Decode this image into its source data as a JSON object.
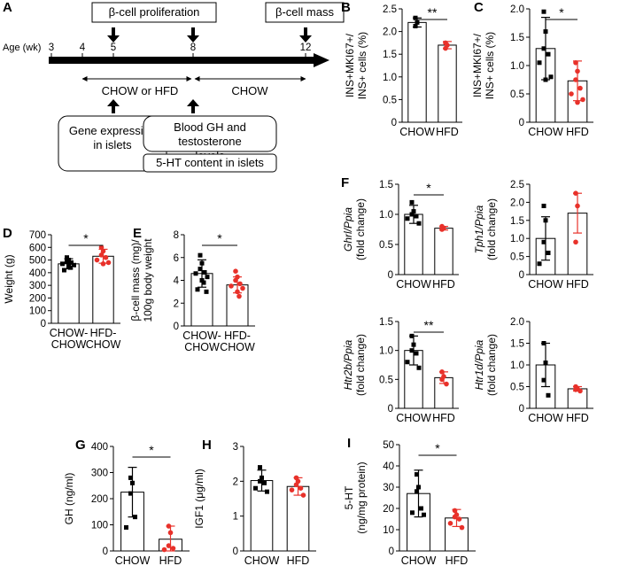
{
  "colors": {
    "chow": "#000000",
    "hfd": "#e8312a",
    "bar": "#ffffff"
  },
  "timeline": {
    "panel": "A",
    "age_label": "Age (wk)",
    "ages": [
      "3",
      "4",
      "5",
      "8",
      "12"
    ],
    "top_boxes": [
      "β-cell proliferation",
      "β-cell mass"
    ],
    "diet_labels": [
      "CHOW or HFD",
      "CHOW"
    ],
    "bottom_boxes": [
      "Gene expression in islets",
      "Blood GH and testosterone levels",
      "5-HT content in islets"
    ]
  },
  "chart_data": [
    {
      "panel": "B",
      "type": "bar",
      "ylabel": "INS+MKI67+/ INS+ cells (%)",
      "categories": [
        "CHOW",
        "HFD"
      ],
      "values": [
        2.2,
        1.7
      ],
      "errors": [
        0.1,
        0.08
      ],
      "points": [
        [
          2.3,
          2.2,
          2.12
        ],
        [
          1.75,
          1.7,
          1.63
        ]
      ],
      "ylim": [
        0,
        2.5
      ],
      "yticks": [
        0,
        0.5,
        1.0,
        1.5,
        2.0,
        2.5
      ],
      "tick_labels": [
        "0",
        "0.5",
        "1.0",
        "1.5",
        "2.0",
        "2.5"
      ],
      "significance": "**"
    },
    {
      "panel": "C",
      "type": "bar",
      "ylabel": "INS+MKI67+/ INS+ cells (%)",
      "categories": [
        "CHOW",
        "HFD"
      ],
      "values": [
        1.3,
        0.73
      ],
      "errors": [
        0.55,
        0.35
      ],
      "points": [
        [
          1.95,
          1.6,
          1.3,
          1.2,
          1.05,
          0.8,
          0.75
        ],
        [
          1.05,
          0.9,
          0.75,
          0.6,
          0.5,
          0.4,
          0.35
        ]
      ],
      "ylim": [
        0,
        2.0
      ],
      "yticks": [
        0,
        0.5,
        1.0,
        1.5,
        2.0
      ],
      "tick_labels": [
        "0",
        "0.5",
        "1.0",
        "1.5",
        "2.0"
      ],
      "significance": "*"
    },
    {
      "panel": "D",
      "type": "bar",
      "ylabel": "Weight (g)",
      "categories": [
        "CHOW- CHOW",
        "HFD- CHOW"
      ],
      "values": [
        470,
        530
      ],
      "errors": [
        40,
        55
      ],
      "points": [
        [
          520,
          500,
          490,
          480,
          470,
          460,
          450,
          440,
          420
        ],
        [
          600,
          570,
          540,
          520,
          500,
          480,
          470
        ]
      ],
      "ylim": [
        0,
        700
      ],
      "yticks": [
        0,
        100,
        200,
        300,
        400,
        500,
        600,
        700
      ],
      "tick_labels": [
        "0",
        "100",
        "200",
        "300",
        "400",
        "500",
        "600",
        "700"
      ],
      "significance": "*"
    },
    {
      "panel": "E",
      "type": "bar",
      "ylabel": "β-cell mass (mg)/ 100g body weight",
      "categories": [
        "CHOW- CHOW",
        "HFD- CHOW"
      ],
      "values": [
        4.6,
        3.6
      ],
      "errors": [
        1.2,
        0.7
      ],
      "points": [
        [
          6.2,
          5.5,
          5.0,
          4.7,
          4.6,
          4.3,
          4.0,
          3.8,
          3.2,
          3.0
        ],
        [
          4.8,
          4.3,
          4.0,
          3.7,
          3.5,
          3.3,
          3.0,
          2.6
        ]
      ],
      "ylim": [
        0,
        8
      ],
      "yticks": [
        0,
        2,
        4,
        6,
        8
      ],
      "tick_labels": [
        "0",
        "2",
        "4",
        "6",
        "8"
      ],
      "significance": "*"
    },
    {
      "panel": "F1",
      "type": "bar",
      "ylabel_italic": "Ghrl/Ppia",
      "ylabel": "(fold change)",
      "categories": [
        "CHOW",
        "HFD"
      ],
      "values": [
        1.0,
        0.77
      ],
      "errors": [
        0.15,
        0.03
      ],
      "points": [
        [
          1.2,
          1.05,
          1.0,
          0.97,
          0.93,
          0.85
        ],
        [
          0.8,
          0.77,
          0.75
        ]
      ],
      "ylim": [
        0,
        1.5
      ],
      "yticks": [
        0,
        0.5,
        1.0,
        1.5
      ],
      "tick_labels": [
        "0",
        "0.5",
        "1.0",
        "1.5"
      ],
      "significance": "*"
    },
    {
      "panel": "F2",
      "type": "bar",
      "ylabel_italic": "Tph1/Ppia",
      "ylabel": "(fold change)",
      "categories": [
        "CHOW",
        "HFD"
      ],
      "values": [
        1.0,
        1.7
      ],
      "errors": [
        0.6,
        0.55
      ],
      "points": [
        [
          1.9,
          1.5,
          0.9,
          0.6,
          0.3
        ],
        [
          2.25,
          1.9,
          0.9
        ]
      ],
      "ylim": [
        0,
        2.5
      ],
      "yticks": [
        0,
        0.5,
        1.0,
        1.5,
        2.0,
        2.5
      ],
      "tick_labels": [
        "0",
        "0.5",
        "1.0",
        "1.5",
        "2.0",
        "2.5"
      ],
      "significance": ""
    },
    {
      "panel": "F3",
      "type": "bar",
      "ylabel_italic": "Htr2b/Ppia",
      "ylabel": "(fold change)",
      "categories": [
        "CHOW",
        "HFD"
      ],
      "values": [
        1.0,
        0.53
      ],
      "errors": [
        0.25,
        0.1
      ],
      "points": [
        [
          1.25,
          1.1,
          1.0,
          0.95,
          0.8,
          0.7
        ],
        [
          0.63,
          0.55,
          0.5,
          0.42
        ]
      ],
      "ylim": [
        0,
        1.5
      ],
      "yticks": [
        0,
        0.5,
        1.0,
        1.5
      ],
      "tick_labels": [
        "0",
        "0.5",
        "1.0",
        "1.5"
      ],
      "significance": "**"
    },
    {
      "panel": "F4",
      "type": "bar",
      "ylabel_italic": "Htr1d/Ppia",
      "ylabel": "(fold change)",
      "categories": [
        "CHOW",
        "HFD"
      ],
      "values": [
        1.0,
        0.45
      ],
      "errors": [
        0.5,
        0.05
      ],
      "points": [
        [
          1.5,
          1.05,
          0.65,
          0.3
        ],
        [
          0.5,
          0.45,
          0.43,
          0.4
        ]
      ],
      "ylim": [
        0,
        2.0
      ],
      "yticks": [
        0,
        0.5,
        1.0,
        1.5,
        2.0
      ],
      "tick_labels": [
        "0",
        "0.5",
        "1.0",
        "1.5",
        "2.0"
      ],
      "significance": ""
    },
    {
      "panel": "G",
      "type": "bar",
      "ylabel": "GH (ng/ml)",
      "categories": [
        "CHOW",
        "HFD"
      ],
      "values": [
        225,
        45
      ],
      "errors": [
        95,
        50
      ],
      "points": [
        [
          280,
          260,
          220,
          130,
          90
        ],
        [
          95,
          70,
          20,
          10,
          5
        ]
      ],
      "ylim": [
        0,
        400
      ],
      "yticks": [
        0,
        100,
        200,
        300,
        400
      ],
      "tick_labels": [
        "0",
        "100",
        "200",
        "300",
        "400"
      ],
      "significance": "*"
    },
    {
      "panel": "H",
      "type": "bar",
      "ylabel": "IGF1 (μg/ml)",
      "categories": [
        "CHOW",
        "HFD"
      ],
      "values": [
        2.02,
        1.85
      ],
      "errors": [
        0.3,
        0.25
      ],
      "points": [
        [
          2.4,
          2.1,
          2.0,
          1.95,
          1.8,
          1.7
        ],
        [
          2.1,
          2.0,
          1.9,
          1.8,
          1.75,
          1.6
        ]
      ],
      "ylim": [
        0,
        3
      ],
      "yticks": [
        0,
        1,
        2,
        3
      ],
      "tick_labels": [
        "0",
        "1",
        "2",
        "3"
      ],
      "significance": ""
    },
    {
      "panel": "I",
      "type": "bar",
      "ylabel": "5-HT (ng/mg protein)",
      "categories": [
        "CHOW",
        "HFD"
      ],
      "values": [
        27,
        15.5
      ],
      "errors": [
        11,
        4
      ],
      "points": [
        [
          36,
          30,
          28,
          20,
          18,
          17
        ],
        [
          19,
          17,
          16,
          15,
          13,
          11
        ]
      ],
      "ylim": [
        0,
        50
      ],
      "yticks": [
        0,
        10,
        20,
        30,
        40,
        50
      ],
      "tick_labels": [
        "0",
        "10",
        "20",
        "30",
        "40",
        "50"
      ],
      "significance": "*"
    }
  ]
}
